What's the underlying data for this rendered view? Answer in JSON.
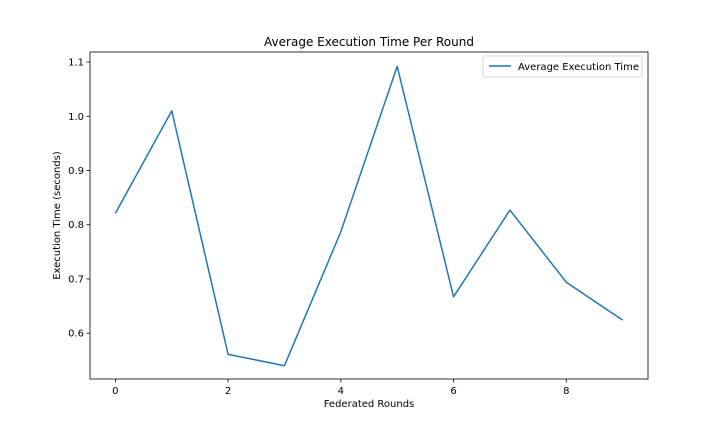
{
  "chart_data": {
    "type": "line",
    "title": "Average Execution Time Per Round",
    "xlabel": "Federated Rounds",
    "ylabel": "Execution Time (seconds)",
    "xlim": [
      -0.45,
      9.45
    ],
    "ylim": [
      0.5155,
      1.1185
    ],
    "x_ticks": [
      0,
      2,
      4,
      6,
      8
    ],
    "y_ticks": [
      0.6,
      0.7,
      0.8,
      0.9,
      1.0,
      1.1
    ],
    "y_tick_labels": [
      "0.6",
      "0.7",
      "0.8",
      "0.9",
      "1.0",
      "1.1"
    ],
    "grid": false,
    "legend_position": "upper right",
    "x": [
      0,
      1,
      2,
      3,
      4,
      5,
      6,
      7,
      8,
      9
    ],
    "series": [
      {
        "name": "Average Execution Time",
        "color": "#1f77b4",
        "values": [
          0.821,
          1.01,
          0.561,
          0.54,
          0.787,
          1.092,
          0.667,
          0.827,
          0.694,
          0.624
        ]
      }
    ]
  }
}
